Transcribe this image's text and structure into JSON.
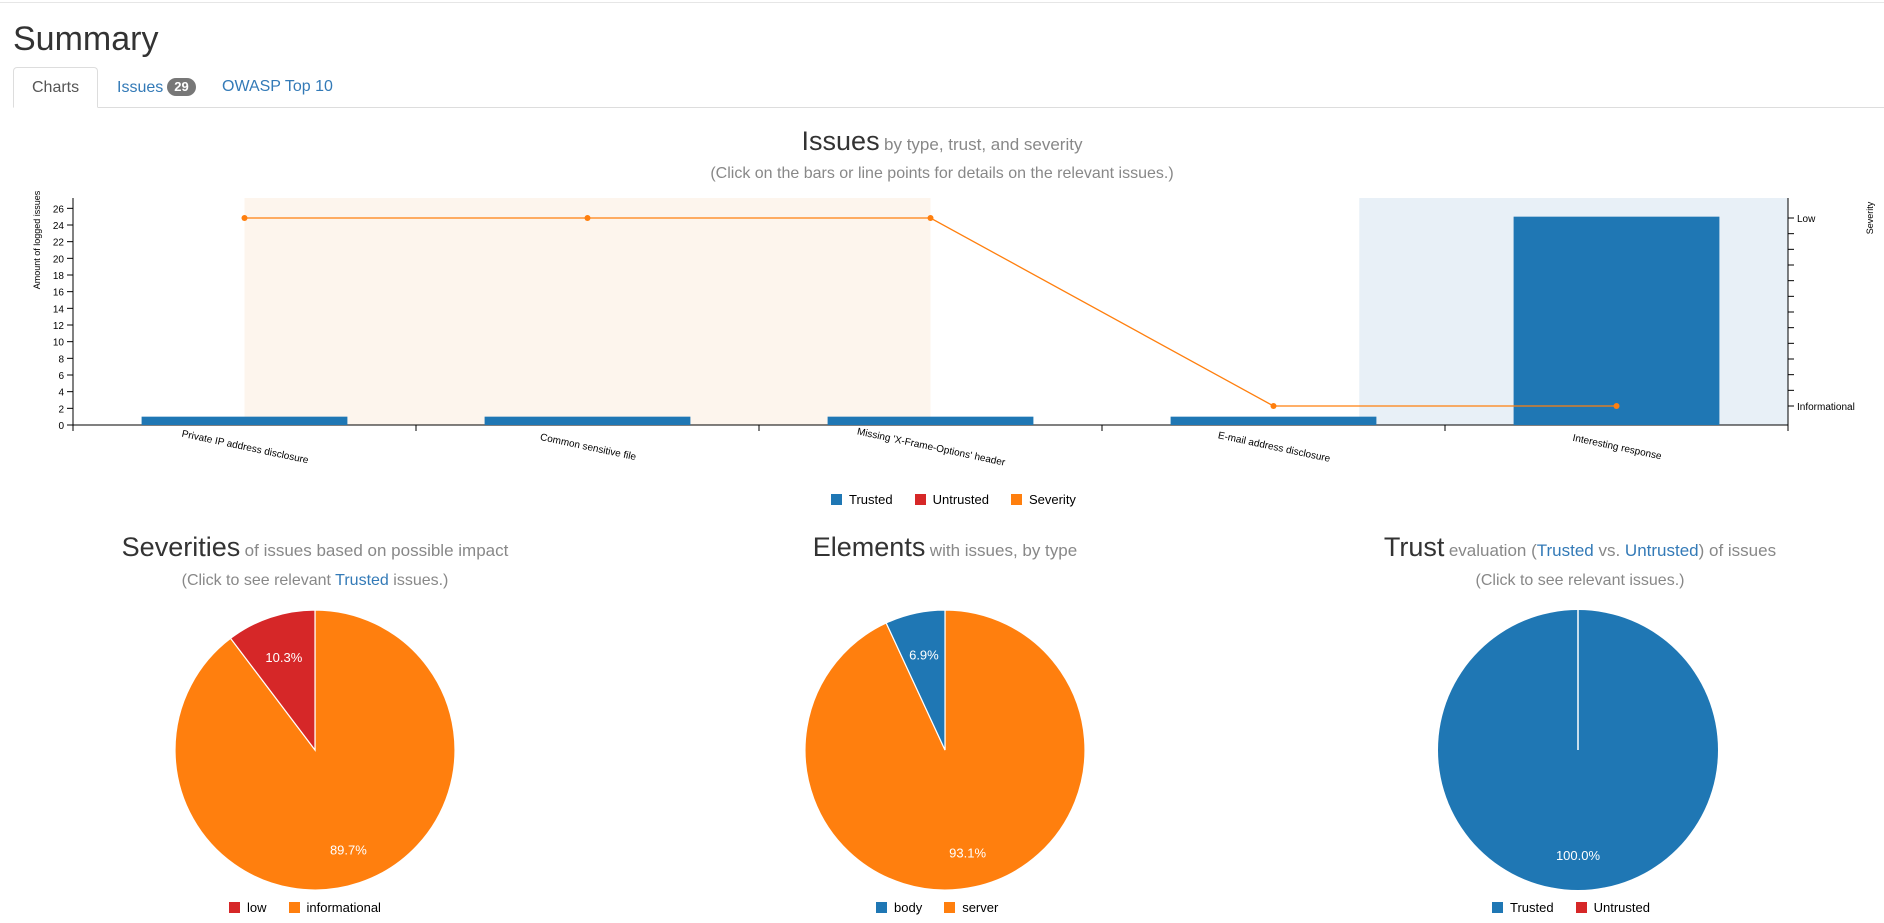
{
  "page": {
    "title": "Summary"
  },
  "tabs": [
    {
      "label": "Charts",
      "active": true
    },
    {
      "label": "Issues",
      "badge": "29"
    },
    {
      "label": "OWASP Top 10"
    }
  ],
  "colors": {
    "trusted": "#1f77b4",
    "untrusted": "#d62728",
    "severity": "#ff7f0e",
    "accent_link": "#337ab7"
  },
  "issues_chart": {
    "title": "Issues",
    "subtitle": "by type, trust, and severity",
    "hint": "(Click on the bars or line points for details on the relevant issues.)",
    "legend": [
      "Trusted",
      "Untrusted",
      "Severity"
    ]
  },
  "severities_chart": {
    "title": "Severities",
    "subtitle": "of issues based on possible impact",
    "hint_pre": "(Click to see relevant ",
    "hint_link": "Trusted",
    "hint_post": " issues.)",
    "legend": [
      "low",
      "informational"
    ]
  },
  "elements_chart": {
    "title": "Elements",
    "subtitle": "with issues, by type",
    "legend": [
      "body",
      "server"
    ]
  },
  "trust_chart": {
    "title": "Trust",
    "subtitle_pre": "evaluation (",
    "subtitle_link1": "Trusted",
    "subtitle_mid": " vs. ",
    "subtitle_link2": "Untrusted",
    "subtitle_post": ") of issues",
    "hint": "(Click to see relevant issues.)",
    "legend": [
      "Trusted",
      "Untrusted"
    ]
  },
  "chart_data": [
    {
      "type": "bar",
      "categories": [
        "Private IP address disclosure",
        "Common sensitive file",
        "Missing 'X-Frame-Options' header",
        "E-mail address disclosure",
        "Interesting response"
      ],
      "series": [
        {
          "name": "Trusted",
          "values": [
            1,
            1,
            1,
            1,
            25
          ]
        },
        {
          "name": "Untrusted",
          "values": [
            0,
            0,
            0,
            0,
            0
          ]
        },
        {
          "name": "Severity",
          "values": [
            "Low",
            "Low",
            "Low",
            "Informational",
            "Informational"
          ]
        }
      ],
      "ylabel": "Amount of logged issues",
      "ylim": [
        0,
        27
      ],
      "yticks": [
        0,
        2,
        4,
        6,
        8,
        10,
        12,
        14,
        16,
        18,
        20,
        22,
        24,
        26
      ],
      "y2label": "Severity",
      "y2ticks": [
        "Informational",
        "Low"
      ],
      "shaded_ranges": [
        {
          "severity": "Low",
          "categories": [
            "Private IP address disclosure",
            "Common sensitive file",
            "Missing 'X-Frame-Options' header"
          ]
        },
        {
          "severity": "Informational",
          "categories": [
            "Interesting response"
          ]
        }
      ],
      "legend_position": "bottom"
    },
    {
      "type": "pie",
      "labels": [
        "low",
        "informational"
      ],
      "values": [
        10.3,
        89.7
      ],
      "value_labels": [
        "10.3%",
        "89.7%"
      ],
      "colors": [
        "#d62728",
        "#ff7f0e"
      ]
    },
    {
      "type": "pie",
      "labels": [
        "body",
        "server"
      ],
      "values": [
        6.9,
        93.1
      ],
      "value_labels": [
        "6.9%",
        "93.1%"
      ],
      "colors": [
        "#1f77b4",
        "#ff7f0e"
      ]
    },
    {
      "type": "pie",
      "labels": [
        "Trusted",
        "Untrusted"
      ],
      "values": [
        100.0,
        0
      ],
      "value_labels": [
        "100.0%",
        ""
      ],
      "colors": [
        "#1f77b4",
        "#d62728"
      ]
    }
  ]
}
